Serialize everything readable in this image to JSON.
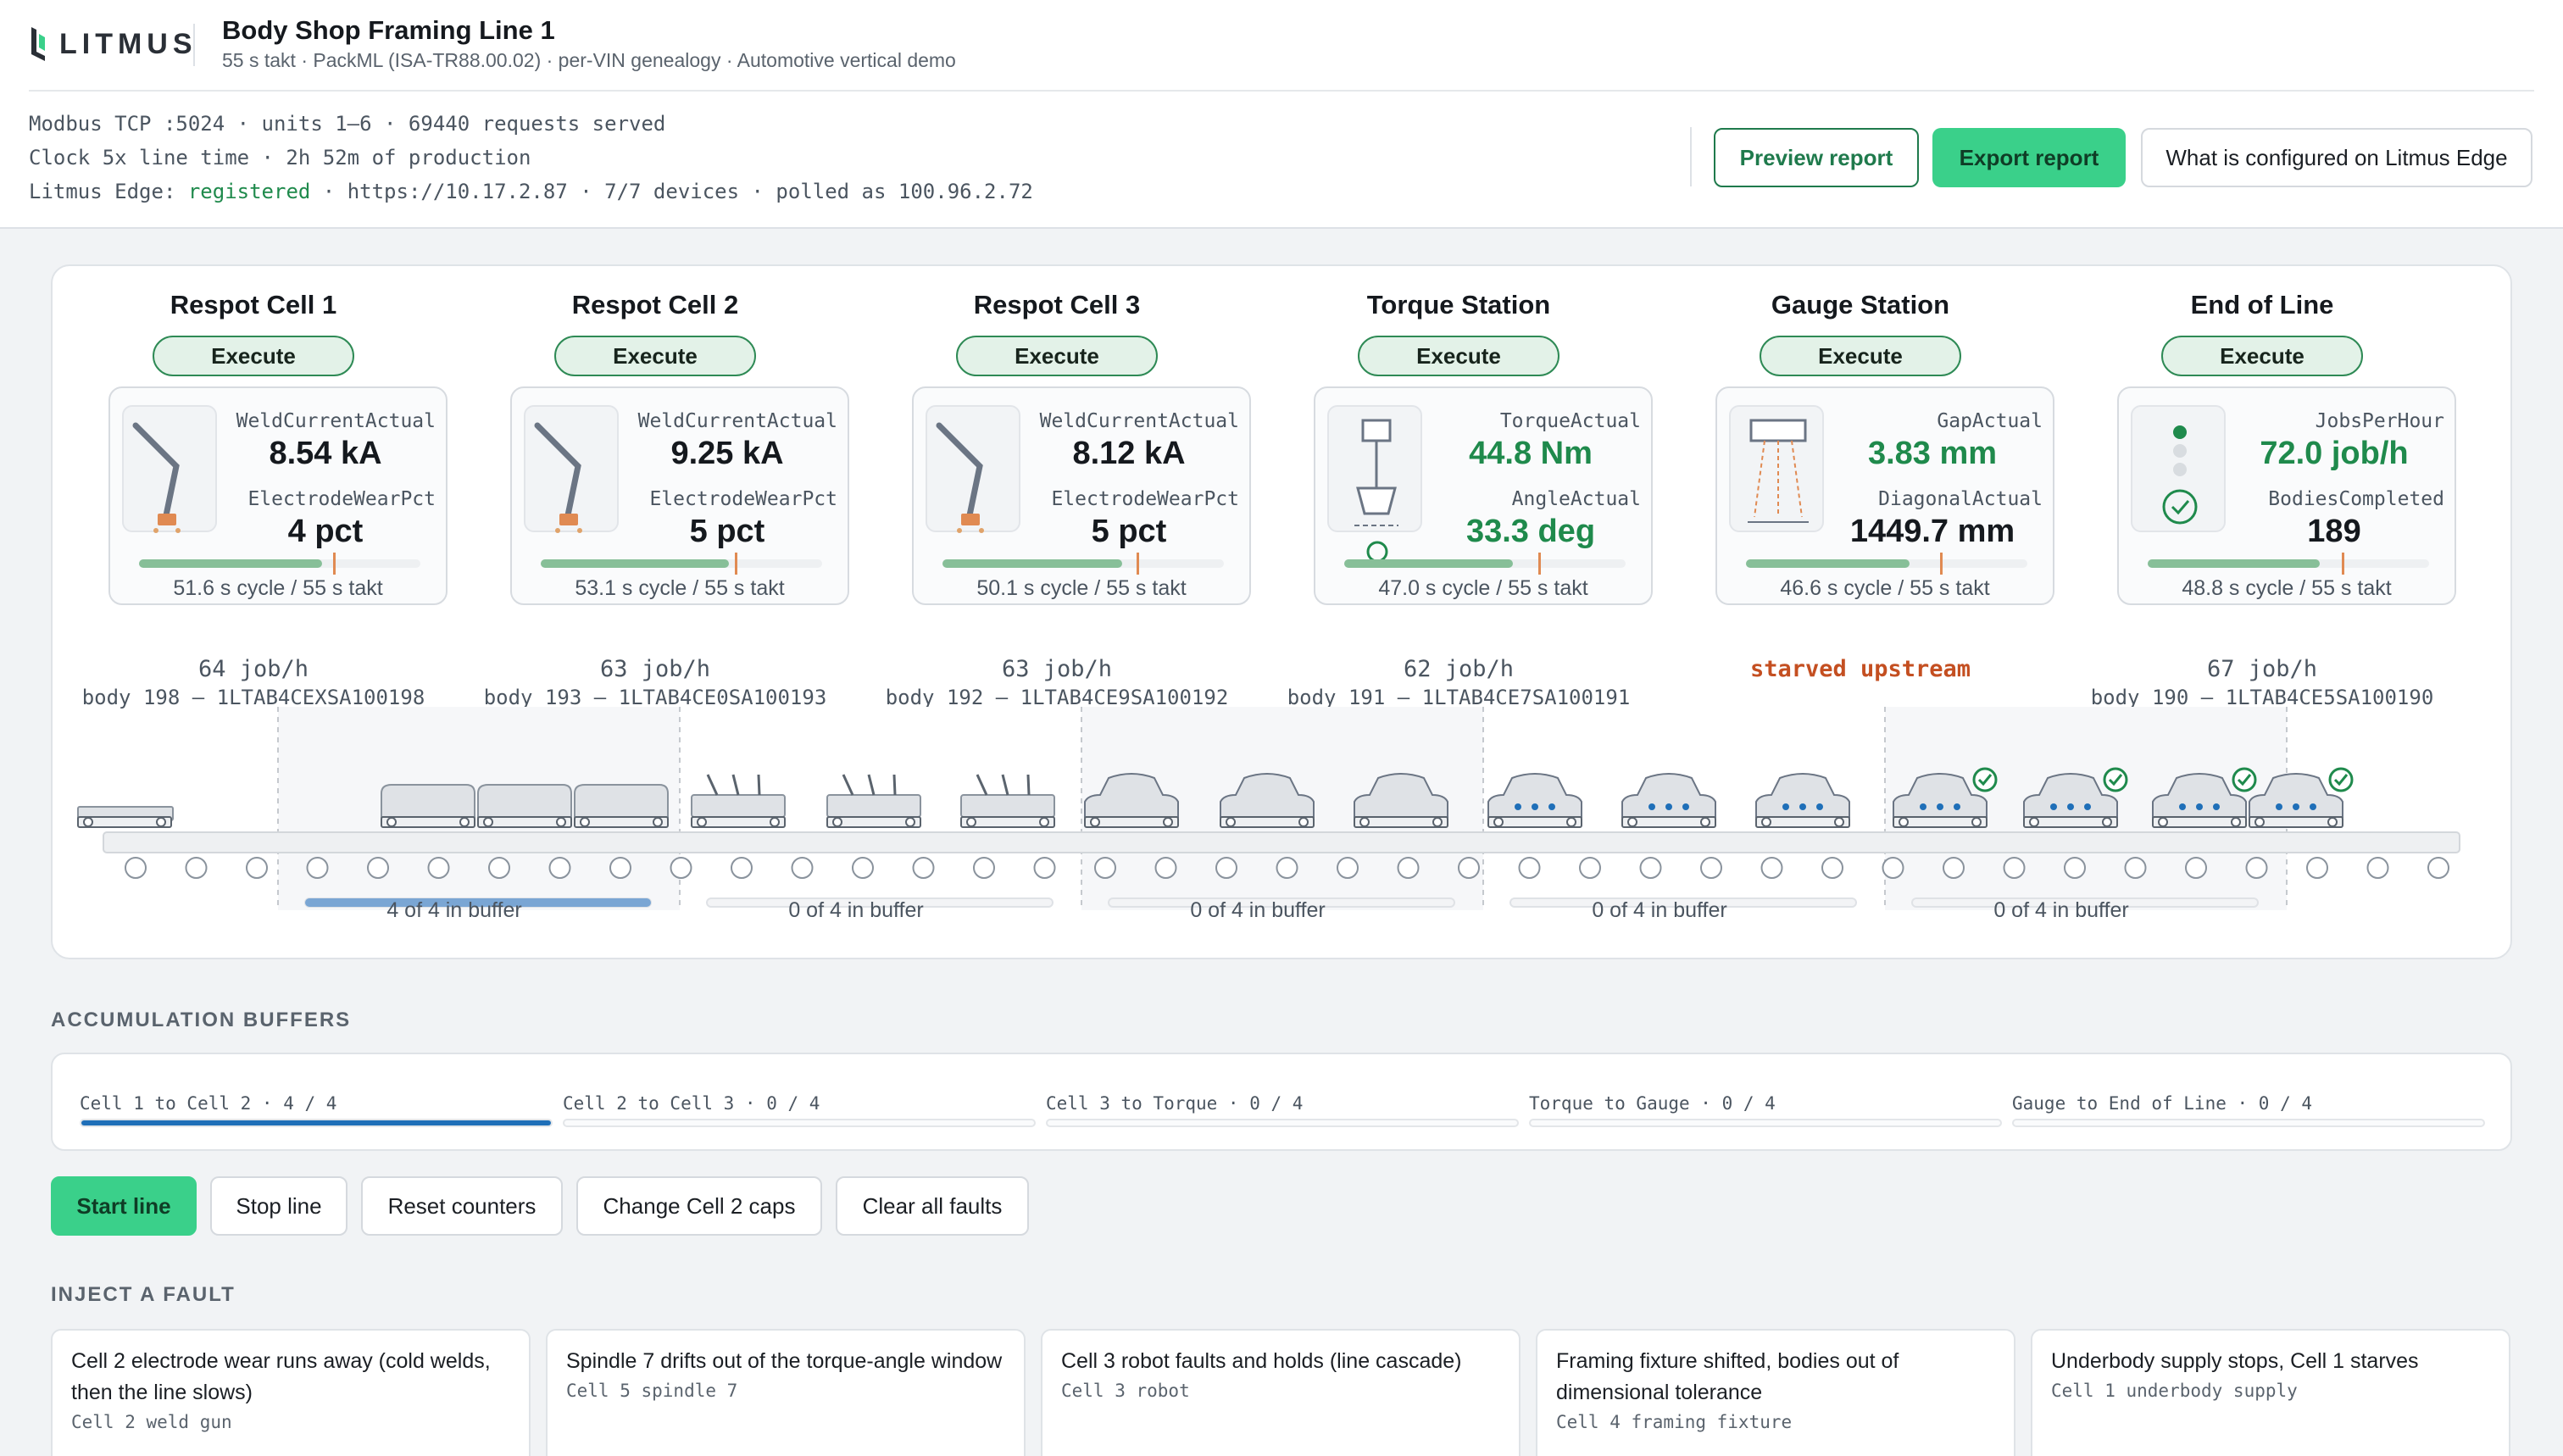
{
  "header": {
    "brand": "LITMUS",
    "title": "Body Shop Framing Line 1",
    "subtitle": "55 s takt · PackML (ISA-TR88.00.02) · per-VIN genealogy · Automotive vertical demo",
    "status_lines": [
      "Modbus TCP :5024 · units 1–6 · 69440 requests served",
      "Clock 5x line time · 2h 52m of production"
    ],
    "edge": {
      "prefix": "Litmus Edge: ",
      "state": "registered",
      "suffix": " · https://10.17.2.87 · 7/7 devices · polled as 100.96.2.72"
    },
    "buttons": {
      "preview": "Preview report",
      "export": "Export report",
      "config": "What is configured on Litmus Edge"
    }
  },
  "colors": {
    "accent": "#3ad08a",
    "ok": "#1f8a4c",
    "warn": "#c44f21",
    "buffer": "#1f6fb8"
  },
  "stations": [
    {
      "name": "Respot Cell 1",
      "state": "Execute",
      "icon": "weld-robot-icon",
      "m1_label": "WeldCurrentActual",
      "m1_value": "8.54 kA",
      "m2_label": "ElectrodeWearPct",
      "m2_value": "4 pct",
      "cycle": "51.6 s cycle / 55 s takt",
      "cycle_fraction": 0.65,
      "rate": "64 job/h",
      "body": "body 198 — 1LTAB4CEXSA100198",
      "buffer": "4 of 4 in buffer"
    },
    {
      "name": "Respot Cell 2",
      "state": "Execute",
      "icon": "weld-robot-icon",
      "m1_label": "WeldCurrentActual",
      "m1_value": "9.25 kA",
      "m2_label": "ElectrodeWearPct",
      "m2_value": "5 pct",
      "cycle": "53.1 s cycle / 55 s takt",
      "cycle_fraction": 0.67,
      "rate": "63 job/h",
      "body": "body 193 — 1LTAB4CE0SA100193",
      "buffer": "0 of 4 in buffer"
    },
    {
      "name": "Respot Cell 3",
      "state": "Execute",
      "icon": "weld-robot-icon",
      "m1_label": "WeldCurrentActual",
      "m1_value": "8.12 kA",
      "m2_label": "ElectrodeWearPct",
      "m2_value": "5 pct",
      "cycle": "50.1 s cycle / 55 s takt",
      "cycle_fraction": 0.64,
      "rate": "63 job/h",
      "body": "body 192 — 1LTAB4CE9SA100192",
      "buffer": "0 of 4 in buffer"
    },
    {
      "name": "Torque Station",
      "state": "Execute",
      "icon": "torque-tool-icon",
      "m1_label": "TorqueActual",
      "m1_value": "44.8 Nm",
      "m2_label": "AngleActual",
      "m2_value": "33.3 deg",
      "cycle": "47.0 s cycle / 55 s takt",
      "cycle_fraction": 0.6,
      "rate": "62 job/h",
      "body": "body 191 — 1LTAB4CE7SA100191",
      "buffer": "0 of 4 in buffer"
    },
    {
      "name": "Gauge Station",
      "state": "Execute",
      "icon": "laser-gauge-icon",
      "m1_label": "GapActual",
      "m1_value": "3.83 mm",
      "m2_label": "DiagonalActual",
      "m2_value": "1449.7 mm",
      "cycle": "46.6 s cycle / 55 s takt",
      "cycle_fraction": 0.58,
      "rate": "starved upstream",
      "body": "",
      "buffer": "0 of 4 in buffer"
    },
    {
      "name": "End of Line",
      "state": "Execute",
      "icon": "signal-light-icon",
      "m1_label": "JobsPerHour",
      "m1_value": "72.0 job/h",
      "m2_label": "BodiesCompleted",
      "m2_value": "189",
      "cycle": "48.8 s cycle / 55 s takt",
      "cycle_fraction": 0.61,
      "rate": "67 job/h",
      "body": "body 190 — 1LTAB4CE5SA100190",
      "buffer": ""
    }
  ],
  "buffers": {
    "heading": "ACCUMULATION BUFFERS",
    "items": [
      {
        "label": "Cell 1 to Cell 2 · 4 / 4",
        "fill": 1.0
      },
      {
        "label": "Cell 2 to Cell 3 · 0 / 4",
        "fill": 0
      },
      {
        "label": "Cell 3 to Torque · 0 / 4",
        "fill": 0
      },
      {
        "label": "Torque to Gauge · 0 / 4",
        "fill": 0
      },
      {
        "label": "Gauge to End of Line · 0 / 4",
        "fill": 0
      }
    ]
  },
  "controls": [
    "Start line",
    "Stop line",
    "Reset counters",
    "Change Cell 2 caps",
    "Clear all faults"
  ],
  "faults": {
    "heading": "INJECT A FAULT",
    "items": [
      {
        "desc": "Cell 2 electrode wear runs away (cold welds, then the line slows)",
        "target": "Cell 2 weld gun"
      },
      {
        "desc": "Spindle 7 drifts out of the torque-angle window",
        "target": "Cell 5 spindle 7"
      },
      {
        "desc": "Cell 3 robot faults and holds (line cascade)",
        "target": "Cell 3 robot"
      },
      {
        "desc": "Framing fixture shifted, bodies out of dimensional tolerance",
        "target": "Cell 4 framing fixture"
      },
      {
        "desc": "Underbody supply stops, Cell 1 starves",
        "target": "Cell 1 underbody supply"
      }
    ]
  }
}
